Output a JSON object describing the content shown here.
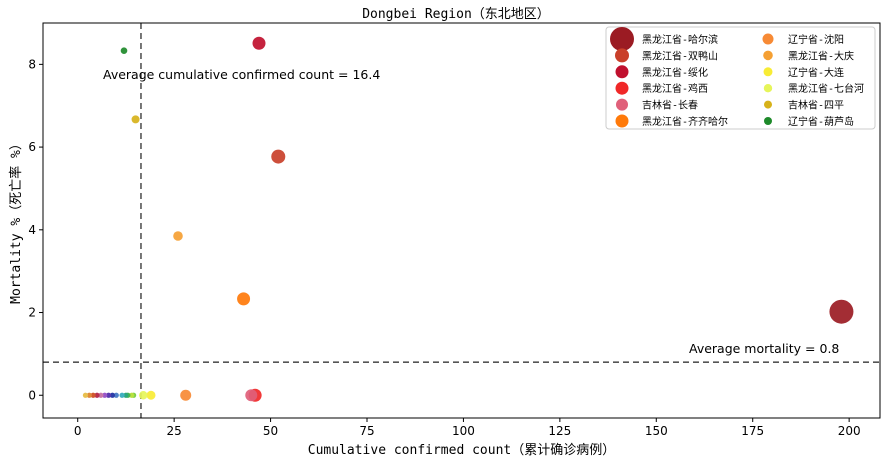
{
  "chart_data": {
    "type": "scatter",
    "title": "Dongbei Region（东北地区）",
    "xlabel": "Cumulative confirmed count（累计确诊病例）",
    "ylabel": "Mortality %（死亡率 %）",
    "xlim": [
      -9,
      208
    ],
    "ylim": [
      -0.55,
      9.0
    ],
    "xticks": [
      0,
      25,
      50,
      75,
      100,
      125,
      150,
      175,
      200
    ],
    "yticks": [
      0,
      2,
      4,
      6,
      8
    ],
    "grid": false,
    "legend_position": "top-right",
    "reference_lines": [
      {
        "orientation": "vertical",
        "value": 16.4,
        "label": "Average cumulative confirmed count = 16.4",
        "color": "#555555"
      },
      {
        "orientation": "horizontal",
        "value": 0.8,
        "label": "Average mortality = 0.8",
        "color": "#555555"
      }
    ],
    "series": [
      {
        "name": "黑龙江省-哈尔滨",
        "color": "#9b1b23",
        "x": 198,
        "y": 2.02
      },
      {
        "name": "黑龙江省-双鸭山",
        "color": "#c9402a",
        "x": 52,
        "y": 5.77
      },
      {
        "name": "黑龙江省-绥化",
        "color": "#c0102e",
        "x": 47,
        "y": 8.51
      },
      {
        "name": "黑龙江省-鸡西",
        "color": "#f02828",
        "x": 46,
        "y": 0.0
      },
      {
        "name": "吉林省-长春",
        "color": "#e0607a",
        "x": 45,
        "y": 0.0
      },
      {
        "name": "黑龙江省-齐齐哈尔",
        "color": "#ff7a0a",
        "x": 43,
        "y": 2.33
      },
      {
        "name": "辽宁省-沈阳",
        "color": "#f78a35",
        "x": 28,
        "y": 0.0
      },
      {
        "name": "黑龙江省-大庆",
        "color": "#f5a033",
        "x": 26,
        "y": 3.85
      },
      {
        "name": "辽宁省-大连",
        "color": "#f8ec35",
        "x": 19,
        "y": 0.0
      },
      {
        "name": "黑龙江省-七台河",
        "color": "#e6f55a",
        "x": 17,
        "y": 0.0
      },
      {
        "name": "吉林省-四平",
        "color": "#d7b21a",
        "x": 15,
        "y": 6.67
      },
      {
        "name": "辽宁省-葫芦岛",
        "color": "#1e8a2a",
        "x": 12,
        "y": 8.33
      }
    ],
    "minor_points": [
      {
        "color": "#7cd04a",
        "x": 14.5,
        "y": 0.0
      },
      {
        "color": "#b8e040",
        "x": 14,
        "y": 0.0
      },
      {
        "color": "#4cb84c",
        "x": 13,
        "y": 0.0
      },
      {
        "color": "#2ca87c",
        "x": 12.5,
        "y": 0.0
      },
      {
        "color": "#40b0c0",
        "x": 11.5,
        "y": 0.0
      },
      {
        "color": "#4f80c8",
        "x": 10,
        "y": 0.0
      },
      {
        "color": "#2d3ea8",
        "x": 9,
        "y": 0.0
      },
      {
        "color": "#5a3ab0",
        "x": 8,
        "y": 0.0
      },
      {
        "color": "#9a58c8",
        "x": 7,
        "y": 0.0
      },
      {
        "color": "#c878a8",
        "x": 6,
        "y": 0.0
      },
      {
        "color": "#b83050",
        "x": 5,
        "y": 0.0
      },
      {
        "color": "#d05830",
        "x": 4,
        "y": 0.0
      },
      {
        "color": "#e08a3a",
        "x": 3,
        "y": 0.0
      },
      {
        "color": "#e8c050",
        "x": 2,
        "y": 0.0
      }
    ]
  }
}
